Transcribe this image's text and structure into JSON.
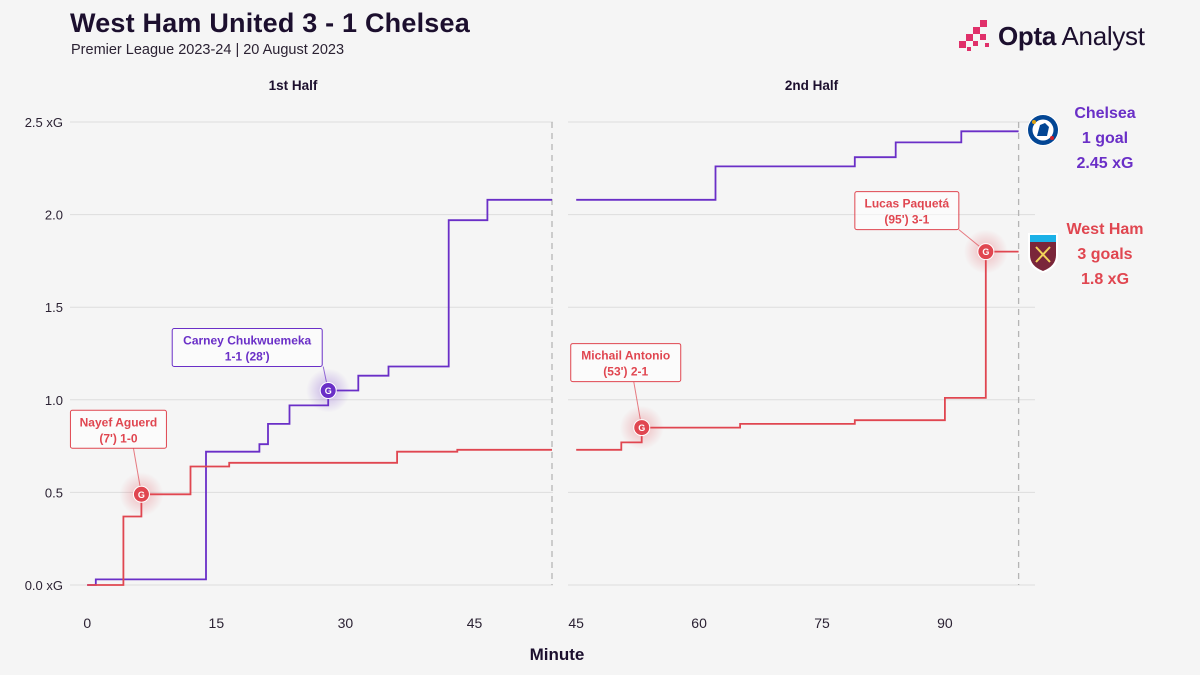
{
  "header": {
    "title": "West Ham United 3 - 1 Chelsea",
    "subtitle": "Premier League 2023-24 | 20 August 2023",
    "brand_bold": "Opta",
    "brand_light": " Analyst"
  },
  "colors": {
    "chelsea": "#6a2fc7",
    "westham": "#e04650",
    "grid": "#dddddd",
    "vline": "#b5b5b5"
  },
  "chart_data": {
    "type": "line",
    "xlabel": "Minute",
    "ylabel": "",
    "ylim": [
      0,
      2.5
    ],
    "yticks": [
      "0.0 xG",
      "0.5",
      "1.0",
      "1.5",
      "2.0",
      "2.5 xG"
    ],
    "grid": true,
    "panels": [
      {
        "title": "1st Half",
        "xlim": [
          -2,
          54
        ],
        "xticks": [
          0,
          15,
          30,
          45
        ],
        "end_marker": 54,
        "series": [
          {
            "name": "Chelsea",
            "points": [
              [
                0,
                0.0
              ],
              [
                1,
                0.0
              ],
              [
                1,
                0.03
              ],
              [
                13.8,
                0.03
              ],
              [
                13.8,
                0.72
              ],
              [
                20,
                0.72
              ],
              [
                20,
                0.76
              ],
              [
                21,
                0.76
              ],
              [
                21,
                0.87
              ],
              [
                23.5,
                0.87
              ],
              [
                23.5,
                0.97
              ],
              [
                28,
                0.97
              ],
              [
                28,
                1.05
              ],
              [
                31.5,
                1.05
              ],
              [
                31.5,
                1.13
              ],
              [
                35,
                1.13
              ],
              [
                35,
                1.18
              ],
              [
                42,
                1.18
              ],
              [
                42,
                1.97
              ],
              [
                46.5,
                1.97
              ],
              [
                46.5,
                2.08
              ],
              [
                54,
                2.08
              ]
            ]
          },
          {
            "name": "West Ham",
            "points": [
              [
                0,
                0.0
              ],
              [
                4.2,
                0.0
              ],
              [
                4.2,
                0.37
              ],
              [
                6.3,
                0.37
              ],
              [
                6.3,
                0.49
              ],
              [
                12,
                0.49
              ],
              [
                12,
                0.64
              ],
              [
                16.5,
                0.64
              ],
              [
                16.5,
                0.66
              ],
              [
                36,
                0.66
              ],
              [
                36,
                0.72
              ],
              [
                43,
                0.72
              ],
              [
                43,
                0.73
              ],
              [
                54,
                0.73
              ]
            ]
          }
        ],
        "goals": [
          {
            "team": "West Ham",
            "minute": 6.3,
            "xg": 0.49,
            "lines": [
              "Nayef Aguerd",
              "(7') 1-0"
            ]
          },
          {
            "team": "Chelsea",
            "minute": 28,
            "xg": 1.05,
            "lines": [
              "Carney Chukwuemeka",
              "1-1 (28')"
            ]
          }
        ]
      },
      {
        "title": "2nd Half",
        "xlim": [
          44,
          101
        ],
        "xticks": [
          45,
          60,
          75,
          90
        ],
        "end_marker": 99,
        "series": [
          {
            "name": "Chelsea",
            "points": [
              [
                45,
                2.08
              ],
              [
                62,
                2.08
              ],
              [
                62,
                2.26
              ],
              [
                79,
                2.26
              ],
              [
                79,
                2.31
              ],
              [
                84,
                2.31
              ],
              [
                84,
                2.39
              ],
              [
                92,
                2.39
              ],
              [
                92,
                2.45
              ],
              [
                99,
                2.45
              ]
            ]
          },
          {
            "name": "West Ham",
            "points": [
              [
                45,
                0.73
              ],
              [
                50.5,
                0.73
              ],
              [
                50.5,
                0.77
              ],
              [
                53,
                0.77
              ],
              [
                53,
                0.85
              ],
              [
                65,
                0.85
              ],
              [
                65,
                0.87
              ],
              [
                79,
                0.87
              ],
              [
                79,
                0.89
              ],
              [
                90,
                0.89
              ],
              [
                90,
                1.01
              ],
              [
                95,
                1.01
              ],
              [
                95,
                1.8
              ],
              [
                99,
                1.8
              ]
            ]
          }
        ],
        "goals": [
          {
            "team": "West Ham",
            "minute": 53,
            "xg": 0.85,
            "lines": [
              "Michail Antonio",
              "(53') 2-1"
            ]
          },
          {
            "team": "West Ham",
            "minute": 95,
            "xg": 1.8,
            "lines": [
              "Lucas Paquetá",
              "(95') 3-1"
            ]
          }
        ]
      }
    ],
    "goal_marker": "G",
    "teams": [
      {
        "name": "Chelsea",
        "goals_text": "1 goal",
        "xg_text": "2.45 xG",
        "crest": "chelsea-crest-icon"
      },
      {
        "name": "West Ham",
        "goals_text": "3 goals",
        "xg_text": "1.8 xG",
        "crest": "west-ham-crest-icon"
      }
    ]
  }
}
